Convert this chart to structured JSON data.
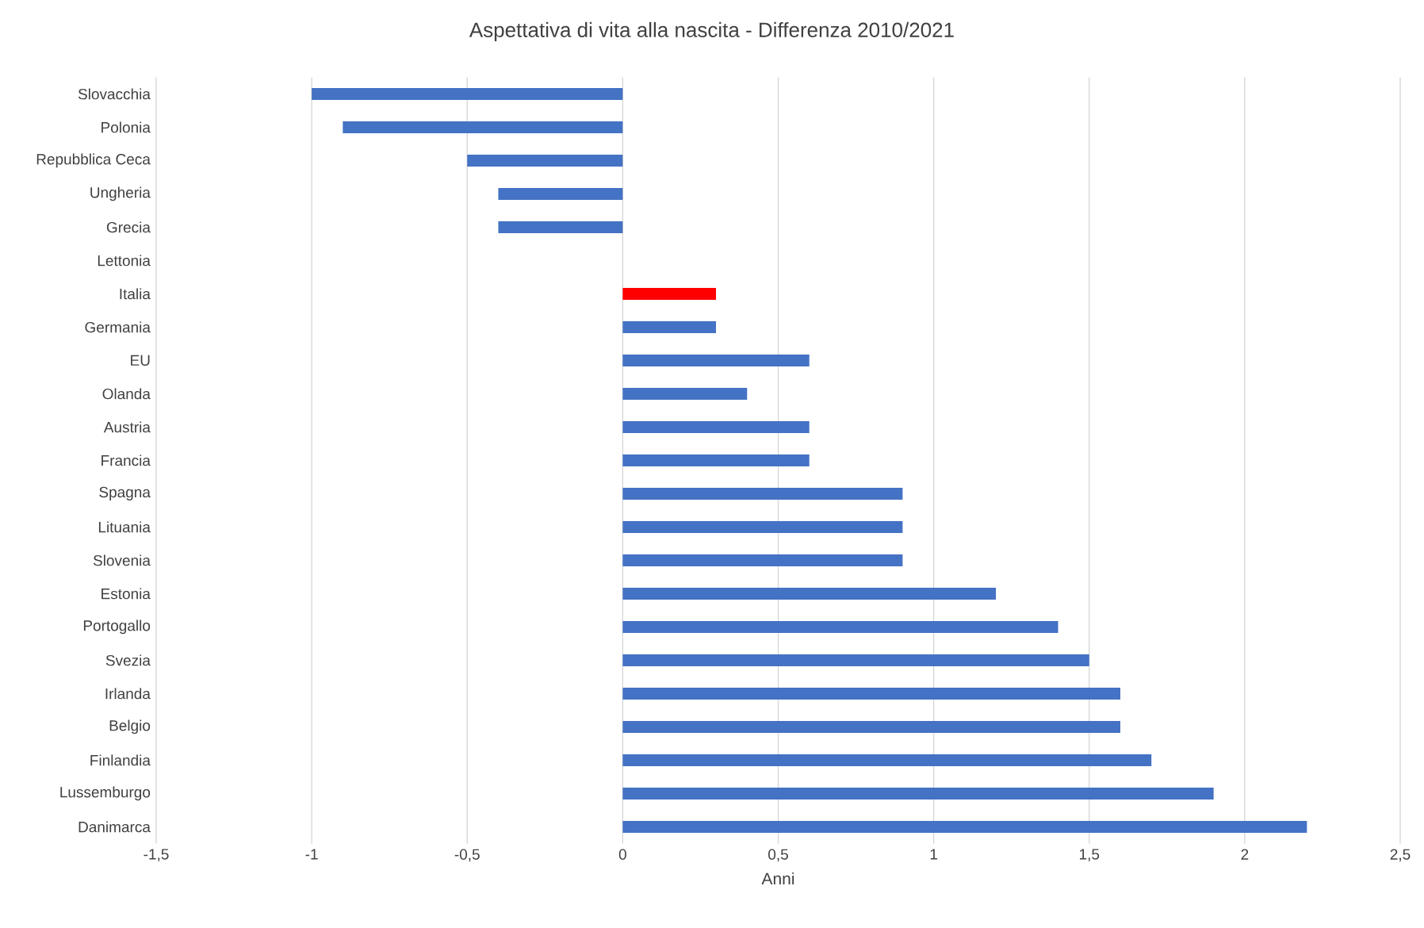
{
  "chart_data": {
    "type": "bar",
    "orientation": "horizontal",
    "title": "Aspettativa di vita alla nascita - Differenza 2010/2021",
    "xlabel": "Anni",
    "categories": [
      "Slovacchia",
      "Polonia",
      "Repubblica Ceca",
      "Ungheria",
      "Grecia",
      "Lettonia",
      "Italia",
      "Germania",
      "EU",
      "Olanda",
      "Austria",
      "Francia",
      "Spagna",
      "Lituania",
      "Slovenia",
      "Estonia",
      "Portogallo",
      "Svezia",
      "Irlanda",
      "Belgio",
      "Finlandia",
      "Lussemburgo",
      "Danimarca"
    ],
    "values": [
      -1,
      -0.9,
      -0.5,
      -0.4,
      -0.4,
      0,
      0.3,
      0.3,
      0.6,
      0.4,
      0.6,
      0.6,
      0.9,
      0.9,
      0.9,
      1.2,
      1.4,
      1.5,
      1.6,
      1.6,
      1.7,
      1.9,
      2.2
    ],
    "colors": [
      "#4472c4",
      "#4472c4",
      "#4472c4",
      "#4472c4",
      "#4472c4",
      "#4472c4",
      "#ff0000",
      "#4472c4",
      "#4472c4",
      "#4472c4",
      "#4472c4",
      "#4472c4",
      "#4472c4",
      "#4472c4",
      "#4472c4",
      "#4472c4",
      "#4472c4",
      "#4472c4",
      "#4472c4",
      "#4472c4",
      "#4472c4",
      "#4472c4",
      "#4472c4"
    ],
    "xlim": [
      -1.5,
      2.5
    ],
    "xticks": [
      {
        "value": -1.5,
        "label": "-1,5"
      },
      -1,
      {
        "value": -0.5,
        "label": "-0,5"
      },
      0,
      {
        "value": 0.5,
        "label": "0,5"
      },
      1,
      {
        "value": 1.5,
        "label": "1,5"
      },
      2,
      {
        "value": 2.5,
        "label": "2,5"
      }
    ],
    "grid": "x"
  }
}
